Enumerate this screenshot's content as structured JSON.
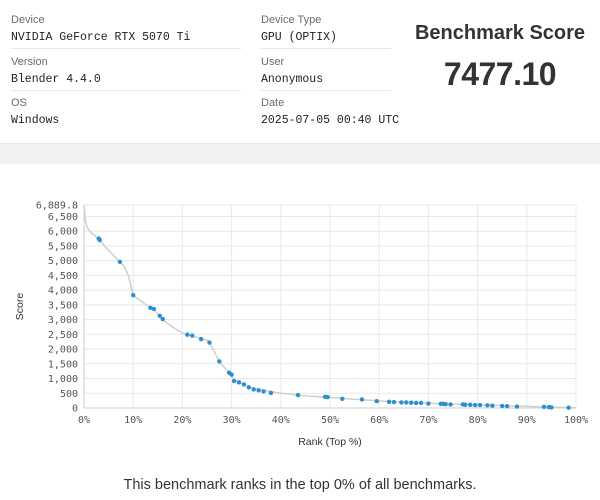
{
  "device": {
    "label": "Device",
    "value": "NVIDIA GeForce RTX 5070 Ti"
  },
  "version": {
    "label": "Version",
    "value": "Blender 4.4.0"
  },
  "os": {
    "label": "OS",
    "value": "Windows"
  },
  "device_type": {
    "label": "Device Type",
    "value": "GPU (OPTIX)"
  },
  "user": {
    "label": "User",
    "value": "Anonymous"
  },
  "date": {
    "label": "Date",
    "value": "2025-07-05 00:40 UTC"
  },
  "score": {
    "title": "Benchmark Score",
    "value": "7477.10"
  },
  "summary": "This benchmark ranks in the top 0% of all benchmarks.",
  "colors": {
    "points": "#2b8fd1",
    "line": "#cfcfcf",
    "grid": "#e8e8e8",
    "band": "#f2f2f2"
  },
  "chart_data": {
    "type": "scatter",
    "xlabel": "Rank (Top %)",
    "ylabel": "Score",
    "xlim": [
      0,
      100
    ],
    "ylim": [
      0,
      6889.8
    ],
    "x_ticks": [
      "0%",
      "10%",
      "20%",
      "30%",
      "40%",
      "50%",
      "60%",
      "70%",
      "80%",
      "90%",
      "100%"
    ],
    "y_ticks": [
      "0",
      "500",
      "1,000",
      "1,500",
      "2,000",
      "2,500",
      "3,000",
      "3,500",
      "4,000",
      "4,500",
      "5,000",
      "5,500",
      "6,000",
      "6,500",
      "6,889.8"
    ],
    "grid": true,
    "x": [
      3.0,
      3.2,
      7.3,
      10.0,
      13.5,
      14.2,
      15.4,
      16.0,
      21.0,
      22.0,
      23.8,
      25.5,
      27.5,
      29.5,
      30.0,
      30.5,
      31.5,
      32.5,
      33.5,
      34.5,
      35.5,
      36.5,
      38.0,
      43.5,
      49.0,
      49.5,
      52.5,
      56.5,
      59.5,
      62.0,
      63.0,
      64.5,
      65.5,
      66.5,
      67.5,
      68.5,
      70.0,
      72.5,
      73.0,
      73.5,
      74.5,
      77.0,
      77.5,
      78.5,
      79.5,
      80.5,
      82.0,
      83.0,
      85.0,
      86.0,
      88.0,
      93.5,
      94.5,
      95.0,
      98.5
    ],
    "y": [
      5750,
      5700,
      4960,
      3830,
      3400,
      3360,
      3130,
      3020,
      2490,
      2460,
      2340,
      2220,
      1580,
      1200,
      1130,
      920,
      870,
      800,
      700,
      630,
      600,
      560,
      510,
      440,
      380,
      370,
      310,
      290,
      230,
      210,
      200,
      190,
      190,
      180,
      170,
      170,
      150,
      140,
      140,
      130,
      120,
      120,
      110,
      110,
      100,
      100,
      90,
      80,
      70,
      60,
      50,
      40,
      30,
      20,
      10
    ],
    "line_x": [
      0,
      0.2,
      0.4,
      0.8,
      1.5,
      2.5,
      3.2,
      5,
      7.3,
      8.2,
      9.0,
      9.6,
      10.0,
      11,
      13.5,
      14.5,
      16,
      18,
      20,
      21,
      22.5,
      24,
      25,
      25.5,
      26.5,
      27.5,
      28.5,
      29.5,
      30.5,
      32,
      34,
      36,
      38,
      40,
      43.5,
      46,
      50,
      55,
      60,
      65,
      70,
      75,
      80,
      85,
      90,
      95,
      100
    ],
    "line_y": [
      6889.8,
      6500,
      6250,
      6080,
      5950,
      5800,
      5700,
      5350,
      4960,
      4800,
      4500,
      4100,
      3830,
      3700,
      3400,
      3300,
      3000,
      2750,
      2550,
      2490,
      2420,
      2350,
      2300,
      2220,
      1900,
      1580,
      1380,
      1200,
      950,
      830,
      700,
      620,
      560,
      500,
      440,
      400,
      360,
      300,
      240,
      200,
      160,
      130,
      110,
      80,
      55,
      30,
      10
    ]
  }
}
